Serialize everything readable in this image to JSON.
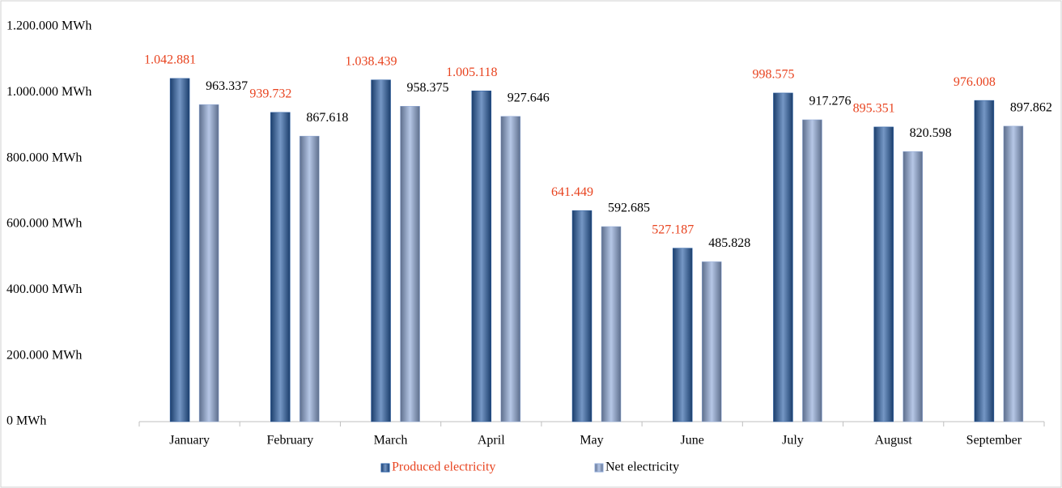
{
  "chart_data": {
    "type": "bar",
    "categories": [
      "January",
      "February",
      "March",
      "April",
      "May",
      "June",
      "July",
      "August",
      "September"
    ],
    "series": [
      {
        "name": "Produced electricity",
        "color": "#2a5fa6",
        "label_color": "#e8431f",
        "values": [
          1042881,
          939732,
          1038439,
          1005118,
          641449,
          527187,
          998575,
          895351,
          976008
        ],
        "value_labels": [
          "1.042.881",
          "939.732",
          "1.038.439",
          "1.005.118",
          "641.449",
          "527.187",
          "998.575",
          "895.351",
          "976.008"
        ]
      },
      {
        "name": "Net electricity",
        "color": "#8fa9d8",
        "label_color": "#000000",
        "values": [
          963337,
          867618,
          958375,
          927646,
          592685,
          485828,
          917276,
          820598,
          897862
        ],
        "value_labels": [
          "963.337",
          "867.618",
          "958.375",
          "927.646",
          "592.685",
          "485.828",
          "917.276",
          "820.598",
          "897.862"
        ]
      }
    ],
    "ylim": [
      0,
      1200000
    ],
    "yticks": [
      {
        "value": 0,
        "label": "0 MWh"
      },
      {
        "value": 200000,
        "label": "200.000 MWh"
      },
      {
        "value": 400000,
        "label": "400.000 MWh"
      },
      {
        "value": 600000,
        "label": "600.000 MWh"
      },
      {
        "value": 800000,
        "label": "800.000 MWh"
      },
      {
        "value": 1000000,
        "label": "1.000.000 MWh"
      },
      {
        "value": 1200000,
        "label": "1.200.000 MWh"
      }
    ],
    "grid": false,
    "legend": "bottom"
  }
}
